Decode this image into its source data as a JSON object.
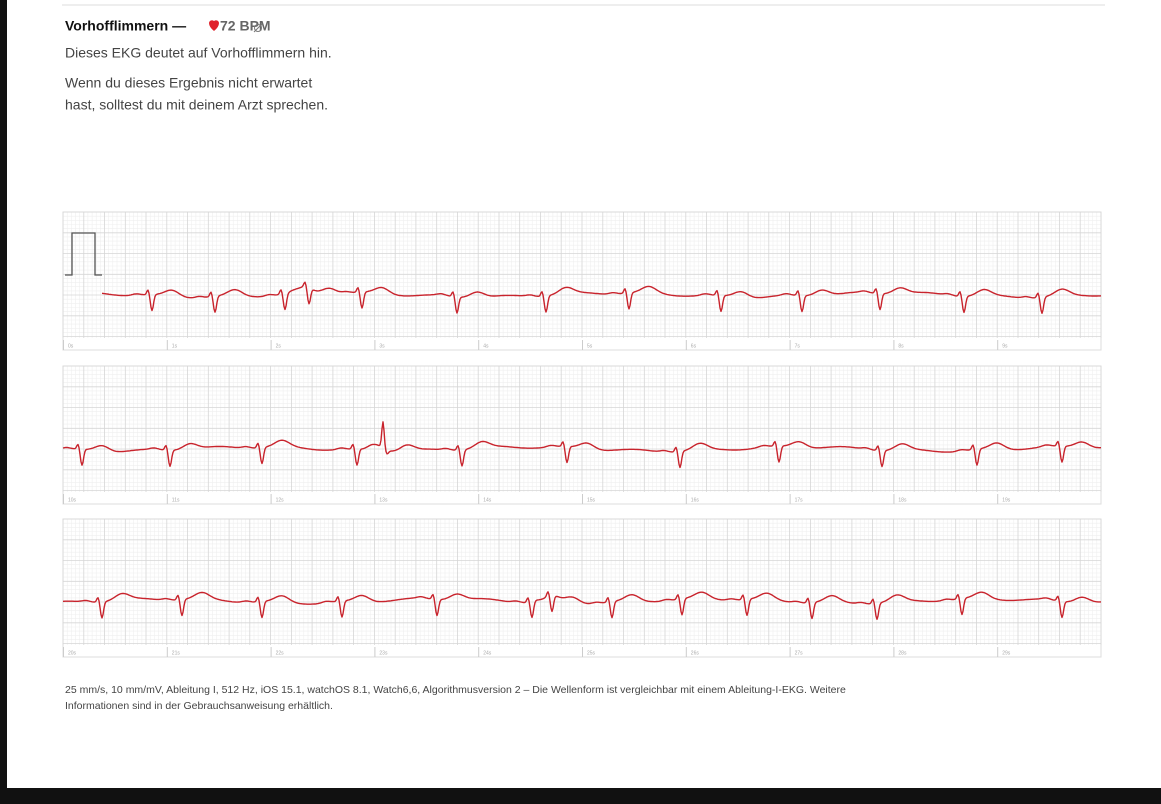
{
  "header": {
    "title": "Vorhofflimmern —",
    "bpm": "72 BPM",
    "summary": "Dieses EKG deutet auf Vorhofflimmern hin.",
    "advice": [
      "Wenn du dieses Ergebnis nicht erwartet",
      "hast, solltest du mit deinem Arzt sprechen."
    ]
  },
  "strips": [
    {
      "labels": [
        "0s",
        "1s",
        "2s",
        "3s",
        "4s",
        "5s",
        "6s",
        "7s",
        "8s",
        "9s"
      ]
    },
    {
      "labels": [
        "10s",
        "11s",
        "12s",
        "13s",
        "14s",
        "15s",
        "16s",
        "17s",
        "18s",
        "19s"
      ]
    },
    {
      "labels": [
        "20s",
        "21s",
        "22s",
        "23s",
        "24s",
        "25s",
        "26s",
        "27s",
        "28s",
        "29s"
      ]
    }
  ],
  "footer": [
    "25 mm/s, 10 mm/mV, Ableitung I, 512 Hz, iOS 15.1, watchOS 8.1, Watch6,6, Algorithmusversion 2 – Die Wellenform ist vergleichbar mit einem Ableitung-I-EKG. Weitere",
    "Informationen sind in der Gebrauchsanweisung erhältlich."
  ]
}
